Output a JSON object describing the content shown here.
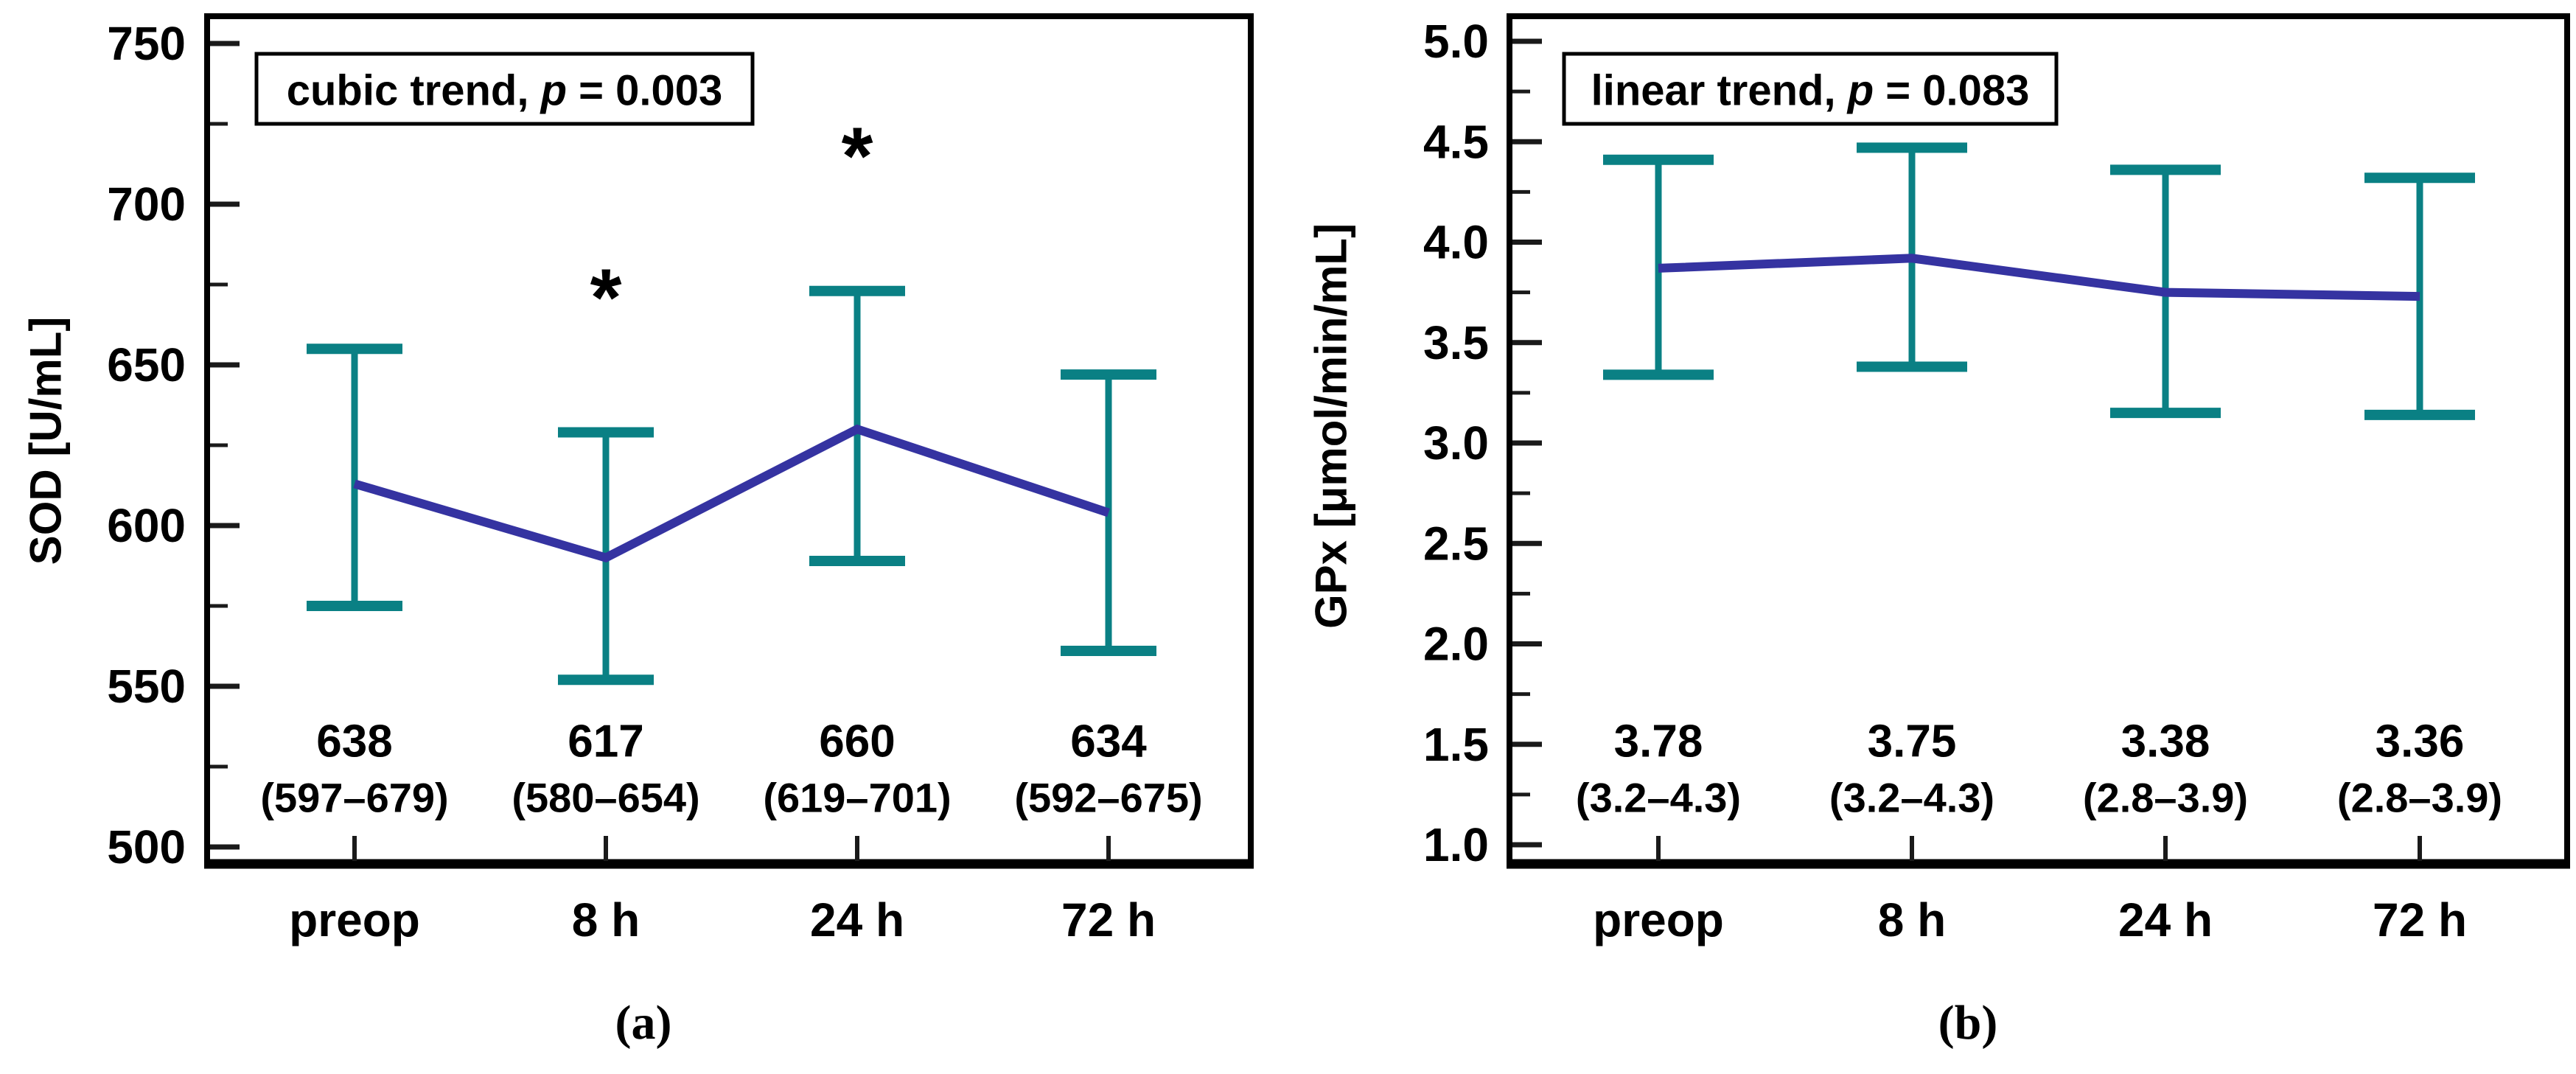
{
  "figure": {
    "background": "#ffffff",
    "captions": [
      {
        "id": "a",
        "text": "(a)"
      },
      {
        "id": "b",
        "text": "(b)"
      }
    ]
  },
  "colors": {
    "axis": "#000000",
    "tick": "#1a1a1a",
    "text": "#000000",
    "error_bar": "#0a8084",
    "trend_line": "#3533a1",
    "annotation_border": "#000000",
    "annotation_bg": "#ffffff"
  },
  "chart_data": [
    {
      "id": "a",
      "type": "line",
      "ylabel": "SOD [U/mL]",
      "categories": [
        "preop",
        "8 h",
        "24 h",
        "72 h"
      ],
      "ylim": [
        500,
        750
      ],
      "grid": false,
      "yticks": [
        {
          "value": 750,
          "label": "750"
        },
        {
          "value": 700,
          "label": "700"
        },
        {
          "value": 650,
          "label": "650"
        },
        {
          "value": 600,
          "label": "600"
        },
        {
          "value": 550,
          "label": "550"
        },
        {
          "value": 500,
          "label": "500"
        }
      ],
      "yminor": [
        725,
        675,
        625,
        575,
        525
      ],
      "annotation": {
        "before": "cubic trend, ",
        "p": "p",
        "after": " = 0.003"
      },
      "series": [
        {
          "name": "mean",
          "values": [
            613,
            590,
            630,
            604
          ]
        }
      ],
      "error_high": [
        655,
        629,
        673,
        647
      ],
      "error_low": [
        575,
        552,
        589,
        561
      ],
      "value_labels": [
        "638",
        "617",
        "660",
        "634"
      ],
      "ci_labels": [
        "(597–679)",
        "(580–654)",
        "(619–701)",
        "(592–675)"
      ],
      "significance": [
        "",
        "*",
        "*",
        ""
      ],
      "caption": "(a)"
    },
    {
      "id": "b",
      "type": "line",
      "ylabel": "GPx [μmol/min/mL]",
      "categories": [
        "preop",
        "8 h",
        "24 h",
        "72 h"
      ],
      "ylim": [
        1.0,
        5.0
      ],
      "grid": false,
      "yticks": [
        {
          "value": 5.0,
          "label": "5.0"
        },
        {
          "value": 4.5,
          "label": "4.5"
        },
        {
          "value": 4.0,
          "label": "4.0"
        },
        {
          "value": 3.5,
          "label": "3.5"
        },
        {
          "value": 3.0,
          "label": "3.0"
        },
        {
          "value": 2.5,
          "label": "2.5"
        },
        {
          "value": 2.0,
          "label": "2.0"
        },
        {
          "value": 1.5,
          "label": "1.5"
        },
        {
          "value": 1.0,
          "label": "1.0"
        }
      ],
      "yminor": [
        4.75,
        4.25,
        3.75,
        3.25,
        2.75,
        2.25,
        1.75,
        1.25
      ],
      "annotation": {
        "before": "linear trend, ",
        "p": "p",
        "after": " = 0.083"
      },
      "series": [
        {
          "name": "mean",
          "values": [
            3.87,
            3.92,
            3.75,
            3.73
          ]
        }
      ],
      "error_high": [
        4.41,
        4.47,
        4.36,
        4.32
      ],
      "error_low": [
        3.34,
        3.38,
        3.15,
        3.14
      ],
      "value_labels": [
        "3.78",
        "3.75",
        "3.38",
        "3.36"
      ],
      "ci_labels": [
        "(3.2–4.3)",
        "(3.2–4.3)",
        "(2.8–3.9)",
        "(2.8–3.9)"
      ],
      "significance": [
        "",
        "",
        "",
        ""
      ],
      "caption": "(b)"
    }
  ]
}
